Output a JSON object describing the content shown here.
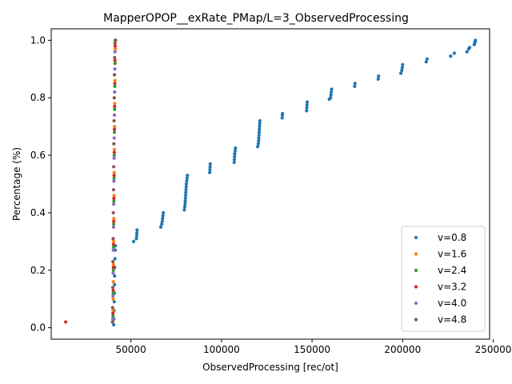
{
  "chart_data": {
    "type": "scatter",
    "title": "MapperOPOP__exRate_PMap/L=3_ObservedProcessing",
    "xlabel": "ObservedProcessing [rec/ot]",
    "ylabel": "Percentage (%)",
    "xlim": [
      6000,
      248000
    ],
    "ylim": [
      -0.04,
      1.04
    ],
    "xticks": [
      50000,
      100000,
      150000,
      200000,
      250000
    ],
    "xtick_labels": [
      "50000",
      "100000",
      "150000",
      "200000",
      "250000"
    ],
    "yticks": [
      0.0,
      0.2,
      0.4,
      0.6,
      0.8,
      1.0
    ],
    "ytick_labels": [
      "0.0",
      "0.2",
      "0.4",
      "0.6",
      "0.8",
      "1.0"
    ],
    "grid": false,
    "legend_position": "lower-right",
    "series": [
      {
        "name": "v=0.8",
        "color": "#1f77b4",
        "points": [
          [
            40500,
            0.01
          ],
          [
            40600,
            0.03
          ],
          [
            40700,
            0.06
          ],
          [
            40800,
            0.09
          ],
          [
            40900,
            0.12
          ],
          [
            41000,
            0.15
          ],
          [
            41000,
            0.18
          ],
          [
            41100,
            0.21
          ],
          [
            41200,
            0.24
          ],
          [
            41300,
            0.27
          ],
          [
            41400,
            0.285
          ],
          [
            51500,
            0.3
          ],
          [
            53000,
            0.31
          ],
          [
            53200,
            0.32
          ],
          [
            53300,
            0.33
          ],
          [
            53400,
            0.34
          ],
          [
            66500,
            0.35
          ],
          [
            67000,
            0.36
          ],
          [
            67300,
            0.37
          ],
          [
            67500,
            0.38
          ],
          [
            67700,
            0.39
          ],
          [
            67900,
            0.4
          ],
          [
            79500,
            0.41
          ],
          [
            79700,
            0.42
          ],
          [
            79900,
            0.43
          ],
          [
            80000,
            0.44
          ],
          [
            80100,
            0.45
          ],
          [
            80200,
            0.46
          ],
          [
            80300,
            0.47
          ],
          [
            80400,
            0.48
          ],
          [
            80500,
            0.49
          ],
          [
            80600,
            0.5
          ],
          [
            80800,
            0.51
          ],
          [
            81000,
            0.52
          ],
          [
            81200,
            0.53
          ],
          [
            93500,
            0.54
          ],
          [
            93600,
            0.55
          ],
          [
            93700,
            0.56
          ],
          [
            93800,
            0.57
          ],
          [
            107000,
            0.575
          ],
          [
            107100,
            0.585
          ],
          [
            107200,
            0.595
          ],
          [
            107300,
            0.605
          ],
          [
            107500,
            0.615
          ],
          [
            107700,
            0.625
          ],
          [
            120000,
            0.63
          ],
          [
            120300,
            0.64
          ],
          [
            120500,
            0.65
          ],
          [
            120600,
            0.66
          ],
          [
            120700,
            0.67
          ],
          [
            120800,
            0.68
          ],
          [
            120900,
            0.69
          ],
          [
            121000,
            0.7
          ],
          [
            121100,
            0.71
          ],
          [
            121200,
            0.72
          ],
          [
            133500,
            0.73
          ],
          [
            133600,
            0.74
          ],
          [
            133700,
            0.745
          ],
          [
            147000,
            0.755
          ],
          [
            147100,
            0.765
          ],
          [
            147200,
            0.775
          ],
          [
            147300,
            0.785
          ],
          [
            159500,
            0.795
          ],
          [
            160200,
            0.8
          ],
          [
            160400,
            0.81
          ],
          [
            160600,
            0.82
          ],
          [
            160800,
            0.83
          ],
          [
            173500,
            0.84
          ],
          [
            173700,
            0.85
          ],
          [
            186500,
            0.865
          ],
          [
            186700,
            0.875
          ],
          [
            199000,
            0.885
          ],
          [
            199500,
            0.895
          ],
          [
            199800,
            0.905
          ],
          [
            200000,
            0.915
          ],
          [
            213000,
            0.925
          ],
          [
            213500,
            0.935
          ],
          [
            226500,
            0.945
          ],
          [
            228500,
            0.955
          ],
          [
            235500,
            0.96
          ],
          [
            236500,
            0.97
          ],
          [
            237000,
            0.975
          ],
          [
            239500,
            0.985
          ],
          [
            239800,
            0.99
          ],
          [
            240000,
            0.995
          ],
          [
            240200,
            1.0
          ]
        ]
      },
      {
        "name": "v=1.6",
        "color": "#ff7f0e",
        "points": [
          [
            40000,
            0.02
          ],
          [
            40100,
            0.06
          ],
          [
            40200,
            0.1
          ],
          [
            40300,
            0.16
          ],
          [
            40400,
            0.22
          ],
          [
            40500,
            0.3
          ],
          [
            40600,
            0.38
          ],
          [
            40700,
            0.46
          ],
          [
            40800,
            0.54
          ],
          [
            40900,
            0.62
          ],
          [
            41000,
            0.7
          ],
          [
            41100,
            0.78
          ],
          [
            41200,
            0.86
          ],
          [
            41300,
            0.92
          ],
          [
            41400,
            0.97
          ],
          [
            41500,
            1.0
          ]
        ]
      },
      {
        "name": "v=2.4",
        "color": "#2ca02c",
        "points": [
          [
            40100,
            0.04
          ],
          [
            40200,
            0.12
          ],
          [
            40300,
            0.2
          ],
          [
            40400,
            0.28
          ],
          [
            40500,
            0.36
          ],
          [
            40600,
            0.44
          ],
          [
            40700,
            0.52
          ],
          [
            40800,
            0.6
          ],
          [
            40900,
            0.68
          ],
          [
            41000,
            0.76
          ],
          [
            41100,
            0.84
          ],
          [
            41200,
            0.92
          ],
          [
            41300,
            1.0
          ]
        ]
      },
      {
        "name": "v=3.2",
        "color": "#d62728",
        "points": [
          [
            14000,
            0.02
          ],
          [
            40100,
            0.05
          ],
          [
            40200,
            0.13
          ],
          [
            40300,
            0.21
          ],
          [
            40400,
            0.29
          ],
          [
            40500,
            0.37
          ],
          [
            40600,
            0.45
          ],
          [
            40700,
            0.53
          ],
          [
            40800,
            0.61
          ],
          [
            40900,
            0.69
          ],
          [
            41000,
            0.77
          ],
          [
            41100,
            0.85
          ],
          [
            41200,
            0.93
          ],
          [
            41300,
            0.98
          ]
        ]
      },
      {
        "name": "v=4.0",
        "color": "#9467bd",
        "points": [
          [
            40000,
            0.03
          ],
          [
            40100,
            0.11
          ],
          [
            40200,
            0.19
          ],
          [
            40300,
            0.27
          ],
          [
            40400,
            0.35
          ],
          [
            40500,
            0.43
          ],
          [
            40600,
            0.51
          ],
          [
            40700,
            0.59
          ],
          [
            40800,
            0.66
          ],
          [
            40900,
            0.74
          ],
          [
            41000,
            0.82
          ],
          [
            41100,
            0.9
          ],
          [
            41200,
            0.96
          ]
        ]
      },
      {
        "name": "v=4.8",
        "color": "#8c564b",
        "points": [
          [
            39800,
            0.02
          ],
          [
            39900,
            0.07
          ],
          [
            40000,
            0.14
          ],
          [
            40100,
            0.23
          ],
          [
            40200,
            0.31
          ],
          [
            40300,
            0.4
          ],
          [
            40400,
            0.48
          ],
          [
            40500,
            0.56
          ],
          [
            40600,
            0.64
          ],
          [
            40700,
            0.72
          ],
          [
            40800,
            0.8
          ],
          [
            40900,
            0.88
          ],
          [
            41000,
            0.94
          ],
          [
            41200,
            0.99
          ],
          [
            41600,
            1.0
          ]
        ]
      }
    ]
  }
}
